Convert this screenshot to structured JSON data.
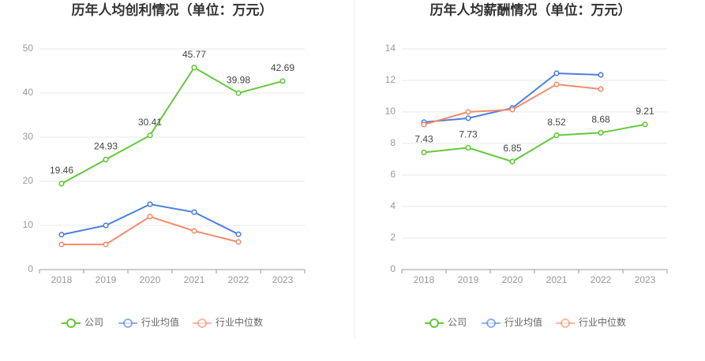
{
  "chart_data": [
    {
      "type": "line",
      "title": "历年人均创利情况（单位：万元）",
      "categories": [
        "2018",
        "2019",
        "2020",
        "2021",
        "2022",
        "2023"
      ],
      "ylim": [
        0,
        50
      ],
      "yticks": [
        0,
        10,
        20,
        30,
        40,
        50
      ],
      "grid": true,
      "legend": "bottom",
      "series": [
        {
          "name": "公司",
          "color": "#63c93c",
          "show_labels": true,
          "values": [
            19.46,
            24.93,
            30.41,
            45.77,
            39.98,
            42.69
          ]
        },
        {
          "name": "行业均值",
          "color": "#4b7fe0",
          "values": [
            7.9,
            10.0,
            14.8,
            13.0,
            8.0,
            null
          ]
        },
        {
          "name": "行业中位数",
          "color": "#f38c6b",
          "values": [
            5.7,
            5.7,
            12.0,
            8.75,
            6.25,
            null
          ]
        }
      ]
    },
    {
      "type": "line",
      "title": "历年人均薪酬情况（单位：万元）",
      "categories": [
        "2018",
        "2019",
        "2020",
        "2021",
        "2022",
        "2023"
      ],
      "ylim": [
        0,
        14
      ],
      "yticks": [
        0,
        2,
        4,
        6,
        8,
        10,
        12,
        14
      ],
      "grid": true,
      "legend": "bottom",
      "series": [
        {
          "name": "公司",
          "color": "#63c93c",
          "show_labels": true,
          "values": [
            7.43,
            7.73,
            6.85,
            8.52,
            8.68,
            9.21
          ]
        },
        {
          "name": "行业均值",
          "color": "#4b7fe0",
          "values": [
            9.35,
            9.6,
            10.25,
            12.45,
            12.35,
            null
          ]
        },
        {
          "name": "行业中位数",
          "color": "#f38c6b",
          "values": [
            9.2,
            10.0,
            10.15,
            11.75,
            11.45,
            null
          ]
        }
      ]
    }
  ]
}
